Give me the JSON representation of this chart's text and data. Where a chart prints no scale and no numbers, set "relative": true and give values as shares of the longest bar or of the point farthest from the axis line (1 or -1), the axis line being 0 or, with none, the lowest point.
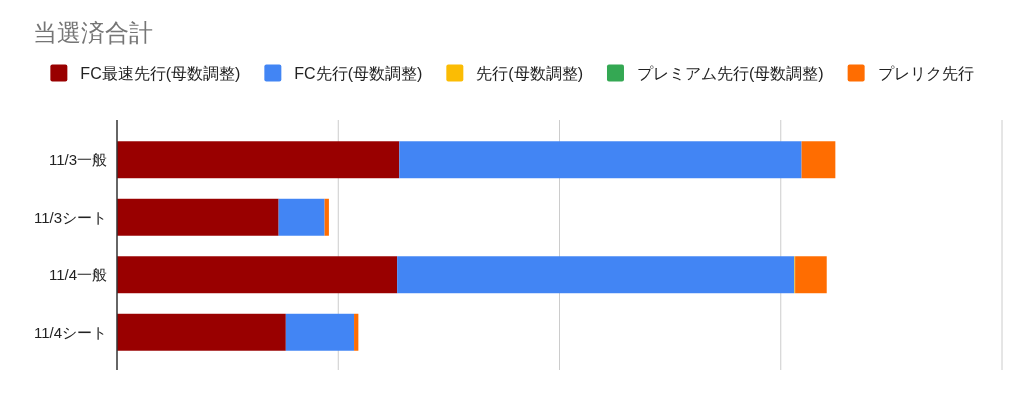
{
  "chart_data": {
    "type": "bar",
    "orientation": "horizontal",
    "stacked": true,
    "relative": true,
    "title": "当選済合計",
    "categories": [
      "11/3一般",
      "11/3シート",
      "11/4一般",
      "11/4シート"
    ],
    "series": [
      {
        "name": "FC最速先行(母数調整)",
        "color": "#990000",
        "values": [
          0.393,
          0.225,
          0.39,
          0.235
        ]
      },
      {
        "name": "FC先行(母数調整)",
        "color": "#4285f4",
        "values": [
          0.56,
          0.064,
          0.553,
          0.095
        ]
      },
      {
        "name": "先行(母数調整)",
        "color": "#fbbc04",
        "values": [
          0,
          0,
          0.001,
          0
        ]
      },
      {
        "name": "プレミアム先行(母数調整)",
        "color": "#34a853",
        "values": [
          0,
          0,
          0,
          0
        ]
      },
      {
        "name": "プレリク先行",
        "color": "#ff6d01",
        "values": [
          0.047,
          0.006,
          0.044,
          0.006
        ]
      }
    ],
    "legend": "top",
    "grid": "x"
  }
}
